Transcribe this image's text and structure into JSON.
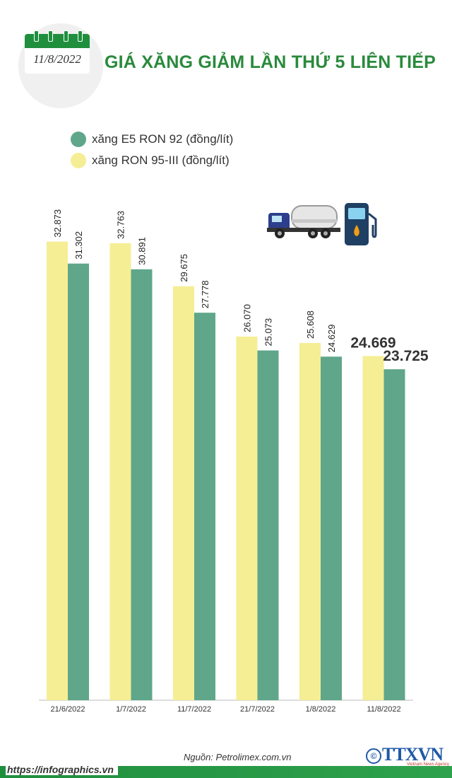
{
  "header": {
    "date": "11/8/2022",
    "title": "GIÁ XĂNG GIẢM LẦN THỨ 5 LIÊN TIẾP"
  },
  "legend": [
    {
      "label": "xăng E5 RON 92 (đồng/lít)",
      "color": "#5fa68a"
    },
    {
      "label": "xăng RON 95-III (đồng/lít)",
      "color": "#f5ee94"
    }
  ],
  "chart_data": {
    "type": "bar",
    "title": "GIÁ XĂNG GIẢM LẦN THỨ 5 LIÊN TIẾP",
    "categories": [
      "21/6/2022",
      "1/7/2022",
      "11/7/2022",
      "21/7/2022",
      "1/8/2022",
      "11/8/2022"
    ],
    "series": [
      {
        "name": "xăng RON 95-III (đồng/lít)",
        "color": "#f5ee94",
        "values": [
          32873,
          32763,
          29675,
          26070,
          25608,
          24669
        ],
        "labels": [
          "32.873",
          "32.763",
          "29.675",
          "26.070",
          "25.608",
          "24.669"
        ]
      },
      {
        "name": "xăng E5 RON 92 (đồng/lít)",
        "color": "#5fa68a",
        "values": [
          31302,
          30891,
          27778,
          25073,
          24629,
          23725
        ],
        "labels": [
          "31.302",
          "30.891",
          "27.778",
          "25.073",
          "24.629",
          "23.725"
        ]
      }
    ],
    "xlabel": "",
    "ylabel": "đồng/lít",
    "ylim": [
      0,
      36000
    ],
    "grid": false,
    "legend_position": "top-left"
  },
  "footer": {
    "source": "Nguồn: Petrolimex.com.vn",
    "url": "https://infographics.vn",
    "logo_text": "TTXVN",
    "logo_subtitle": "Vietnam News Agency",
    "logo_c": "©"
  }
}
